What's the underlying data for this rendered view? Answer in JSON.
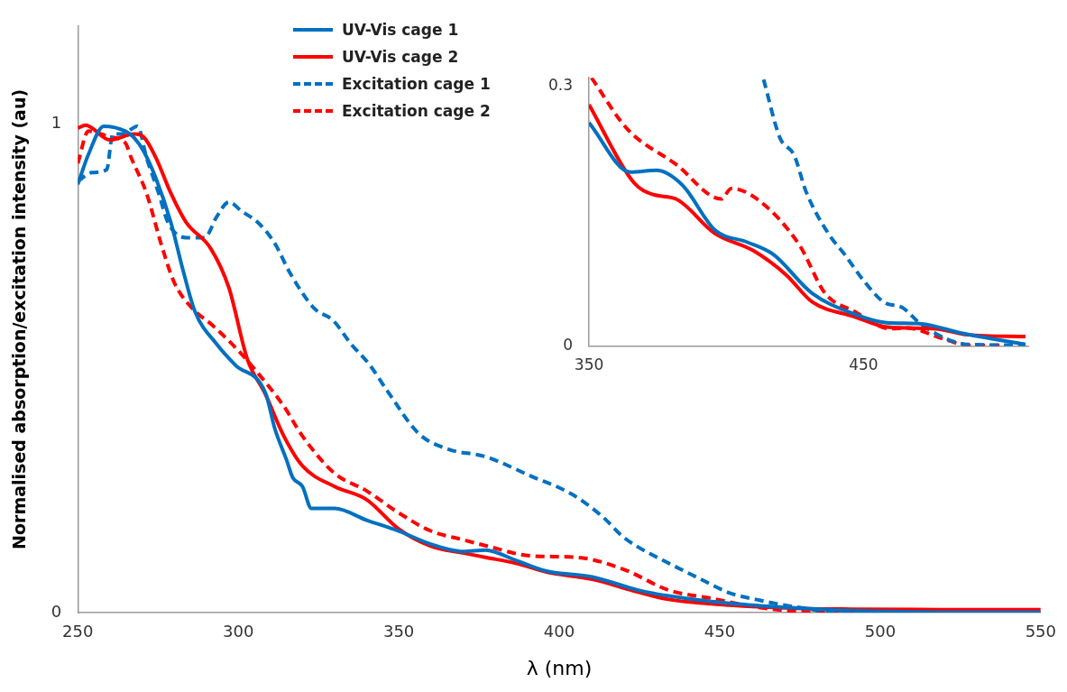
{
  "chart_data": [
    {
      "type": "line",
      "xlabel": "λ (nm)",
      "ylabel": "Normalised absorption/excitation intensity (au)",
      "xlim": [
        250,
        550
      ],
      "xticks": [
        250,
        300,
        350,
        400,
        450,
        500,
        550
      ],
      "ylim": [
        0,
        1.2
      ],
      "yticks": [
        0,
        1
      ],
      "grid": false,
      "legend": "top",
      "marker": "none",
      "series": [
        {
          "name": "UV-Vis cage 1",
          "color": "#0070c0",
          "line_style": "solid",
          "x": [
            250,
            253.3,
            258.1,
            264.8,
            267.6,
            270.5,
            274.3,
            279,
            282.8,
            286.5,
            293.3,
            299,
            308.5,
            311.4,
            315,
            317,
            320,
            322.8,
            330,
            340,
            350,
            360,
            370,
            377,
            386.5,
            396,
            410.3,
            424.6,
            434.1,
            453.2,
            472.2,
            491.2,
            519.8,
            550
          ],
          "values": [
            0.876,
            0.937,
            0.995,
            0.985,
            0.971,
            0.944,
            0.889,
            0.798,
            0.7,
            0.616,
            0.549,
            0.507,
            0.449,
            0.376,
            0.313,
            0.276,
            0.258,
            0.213,
            0.213,
            0.189,
            0.167,
            0.14,
            0.125,
            0.128,
            0.107,
            0.085,
            0.073,
            0.046,
            0.034,
            0.019,
            0.01,
            0.004,
            0.001,
            0.001
          ]
        },
        {
          "name": "UV-Vis cage 2",
          "color": "#ff0000",
          "line_style": "solid",
          "x": [
            250,
            252.4,
            260,
            267.6,
            270.5,
            274.3,
            279,
            283.8,
            291.4,
            297.1,
            302.8,
            308.5,
            314.2,
            320,
            330,
            340,
            350,
            360,
            370,
            377,
            386.5,
            396,
            410.3,
            424.6,
            434.1,
            453.2,
            472.2,
            491.2,
            519.8,
            550
          ],
          "values": [
            0.991,
            0.997,
            0.967,
            0.979,
            0.973,
            0.931,
            0.858,
            0.798,
            0.745,
            0.664,
            0.519,
            0.446,
            0.361,
            0.3,
            0.258,
            0.231,
            0.171,
            0.136,
            0.122,
            0.113,
            0.101,
            0.083,
            0.068,
            0.042,
            0.027,
            0.015,
            0.009,
            0.007,
            0.006,
            0.006
          ]
        },
        {
          "name": "Excitation cage 1",
          "color": "#0070c0",
          "line_style": "dashed",
          "x": [
            250,
            254.3,
            259,
            260.9,
            263.8,
            268.6,
            271.4,
            275.2,
            278.1,
            283.8,
            289.5,
            293.3,
            297.1,
            300.9,
            306.6,
            311.4,
            316.1,
            323.7,
            329.5,
            335.2,
            340.9,
            346.6,
            356.1,
            365,
            377,
            391.3,
            403.7,
            413.2,
            419.9,
            424.6,
            434.1,
            443.6,
            453.2,
            462.7,
            472.2,
            486.5,
            519.8
          ],
          "values": [
            0.882,
            0.9,
            0.906,
            0.979,
            0.979,
            0.995,
            0.931,
            0.858,
            0.798,
            0.767,
            0.767,
            0.81,
            0.84,
            0.822,
            0.795,
            0.755,
            0.695,
            0.622,
            0.598,
            0.549,
            0.507,
            0.452,
            0.367,
            0.335,
            0.319,
            0.279,
            0.243,
            0.198,
            0.155,
            0.134,
            0.101,
            0.07,
            0.04,
            0.025,
            0.013,
            0.002,
            0.001
          ]
        },
        {
          "name": "Excitation cage 2",
          "color": "#ff0000",
          "line_style": "dashed",
          "x": [
            250,
            253.3,
            260,
            264.8,
            266.6,
            271.4,
            276.2,
            280,
            285.7,
            291.4,
            299,
            304.7,
            314.2,
            320,
            330,
            340,
            350,
            360,
            370,
            377,
            391.3,
            405.6,
            419.9,
            434.1,
            448.4,
            462.7,
            481.7,
            519.8
          ],
          "values": [
            0.919,
            0.985,
            0.973,
            0.961,
            0.931,
            0.858,
            0.749,
            0.676,
            0.622,
            0.591,
            0.543,
            0.501,
            0.422,
            0.361,
            0.285,
            0.249,
            0.204,
            0.167,
            0.149,
            0.137,
            0.116,
            0.113,
            0.089,
            0.046,
            0.028,
            0.01,
            0.001,
            0.001
          ]
        }
      ]
    },
    {
      "type": "line",
      "xlim": [
        350,
        510
      ],
      "xticks": [
        350,
        450
      ],
      "ylim": [
        0,
        0.31
      ],
      "yticks": [
        0,
        0.3
      ],
      "grid": false,
      "marker": "none",
      "series": [
        {
          "color": "#0070c0",
          "line_style": "solid",
          "x": [
            350,
            365.1,
            374.6,
            384,
            395.9,
            407.7,
            417.1,
            431.3,
            446.7,
            458.5,
            470.3,
            485.7,
            509
          ],
          "values": [
            0.258,
            0.201,
            0.203,
            0.186,
            0.134,
            0.12,
            0.106,
            0.061,
            0.037,
            0.027,
            0.026,
            0.015,
            0.002
          ]
        },
        {
          "color": "#ff0000",
          "line_style": "solid",
          "x": [
            350,
            366.3,
            373.4,
            381.7,
            395.9,
            410,
            421.9,
            431.3,
            446.7,
            458.5,
            476.2,
            488,
            509
          ],
          "values": [
            0.279,
            0.189,
            0.175,
            0.17,
            0.13,
            0.11,
            0.082,
            0.051,
            0.034,
            0.022,
            0.02,
            0.013,
            0.011
          ]
        },
        {
          "color": "#0070c0",
          "line_style": "dashed",
          "x": [
            413.6,
            419.5,
            424.8,
            429,
            437.2,
            443.1,
            450.2,
            457.3,
            464.4,
            470.3,
            479.8,
            488,
            509
          ],
          "values": [
            0.308,
            0.241,
            0.22,
            0.179,
            0.13,
            0.106,
            0.075,
            0.051,
            0.044,
            0.027,
            0.009,
            0.002,
            0.001
          ]
        },
        {
          "color": "#ff0000",
          "line_style": "dashed",
          "x": [
            350.9,
            363.9,
            381.7,
            398.2,
            401.8,
            411.2,
            426.6,
            436,
            446.7,
            459.7,
            465.6,
            478.6,
            488,
            499.9
          ],
          "values": [
            0.31,
            0.251,
            0.21,
            0.17,
            0.182,
            0.17,
            0.117,
            0.061,
            0.04,
            0.02,
            0.021,
            0.009,
            0.001,
            0.001
          ]
        }
      ]
    }
  ]
}
